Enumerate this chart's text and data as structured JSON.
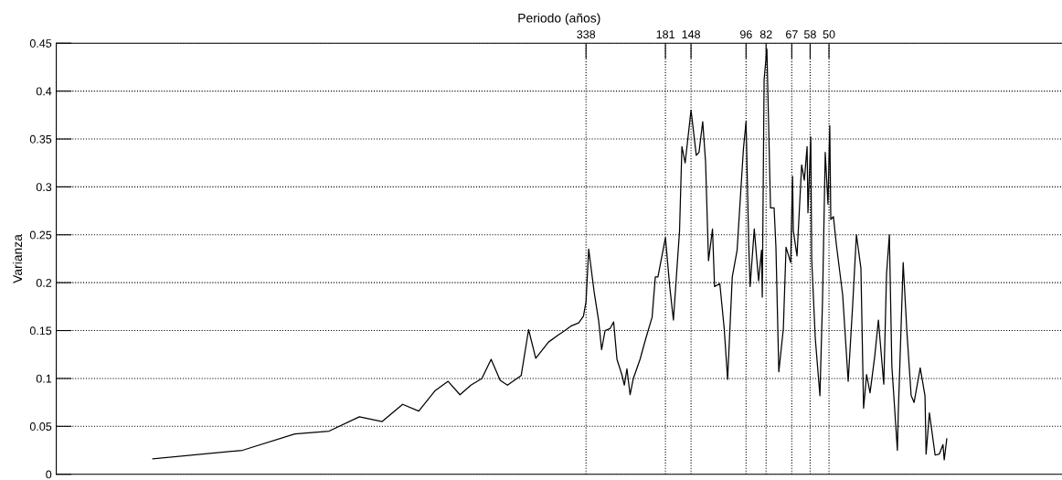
{
  "chart_data": {
    "type": "line",
    "ylabel": "Varianza",
    "xlabel": "Periodo (años)",
    "log": "x",
    "xlim": [
      21800,
      8
    ],
    "ylim": [
      0,
      0.45
    ],
    "yticks": [
      0,
      0.05,
      0.1,
      0.15,
      0.2,
      0.25,
      0.3,
      0.35,
      0.4,
      0.45
    ],
    "xticks": [
      338,
      181,
      148,
      96,
      82,
      67,
      58,
      50
    ],
    "grid": true,
    "marker": "none",
    "line_style": "solid",
    "series": [
      {
        "color": "#000000",
        "x": [
          10200,
          5040,
          3340,
          2550,
          2010,
          1680,
          1430,
          1260,
          1110,
          1000,
          911,
          836,
          767,
          713,
          664,
          627,
          563,
          531,
          502,
          454,
          422,
          399,
          379,
          358,
          345,
          338,
          331,
          317,
          306,
          299,
          291,
          280,
          272,
          265,
          255,
          250,
          245,
          239,
          233,
          221,
          212,
          201,
          196,
          192,
          181,
          175,
          170,
          162,
          159,
          155,
          148,
          142,
          139,
          135,
          132,
          129,
          125,
          123,
          118,
          114,
          111,
          107,
          103,
          98,
          96,
          94,
          93,
          90,
          87,
          85,
          84.5,
          83.3,
          81.5,
          79.2,
          77,
          75.9,
          74.2,
          71.6,
          70.1,
          67.6,
          66.6,
          66.2,
          64.3,
          62,
          60.7,
          59.4,
          59,
          57.7,
          57.3,
          55.7,
          53.7,
          52.6,
          51.5,
          50.4,
          49.7,
          49.3,
          48.3,
          47.2,
          44.9,
          43,
          41.5,
          40.3,
          38.9,
          38.1,
          37.2,
          36.2,
          34.9,
          33.9,
          32.5,
          31.8,
          31.1,
          30.5,
          29.2,
          29,
          27.9,
          27.1,
          26.2,
          25.6,
          24.4,
          23.5,
          23.3,
          22.7,
          21.7,
          21,
          20.4,
          20.2,
          19.8
        ],
        "values": [
          0.016,
          0.025,
          0.042,
          0.045,
          0.06,
          0.055,
          0.073,
          0.066,
          0.087,
          0.097,
          0.083,
          0.093,
          0.1,
          0.12,
          0.098,
          0.093,
          0.103,
          0.151,
          0.121,
          0.138,
          0.145,
          0.15,
          0.155,
          0.158,
          0.165,
          0.18,
          0.235,
          0.19,
          0.16,
          0.13,
          0.15,
          0.152,
          0.159,
          0.12,
          0.104,
          0.093,
          0.11,
          0.083,
          0.1,
          0.12,
          0.14,
          0.164,
          0.206,
          0.206,
          0.247,
          0.196,
          0.161,
          0.254,
          0.342,
          0.325,
          0.38,
          0.333,
          0.336,
          0.368,
          0.326,
          0.223,
          0.256,
          0.196,
          0.199,
          0.152,
          0.099,
          0.206,
          0.234,
          0.34,
          0.368,
          0.24,
          0.196,
          0.256,
          0.202,
          0.234,
          0.185,
          0.412,
          0.444,
          0.278,
          0.278,
          0.237,
          0.107,
          0.152,
          0.237,
          0.221,
          0.311,
          0.254,
          0.228,
          0.323,
          0.307,
          0.342,
          0.273,
          0.352,
          0.225,
          0.142,
          0.082,
          0.183,
          0.336,
          0.282,
          0.364,
          0.266,
          0.269,
          0.24,
          0.187,
          0.097,
          0.177,
          0.25,
          0.215,
          0.069,
          0.104,
          0.085,
          0.123,
          0.161,
          0.094,
          0.209,
          0.25,
          0.113,
          0.025,
          0.063,
          0.221,
          0.149,
          0.082,
          0.075,
          0.111,
          0.082,
          0.021,
          0.064,
          0.02,
          0.021,
          0.031,
          0.015,
          0.037
        ]
      }
    ]
  }
}
